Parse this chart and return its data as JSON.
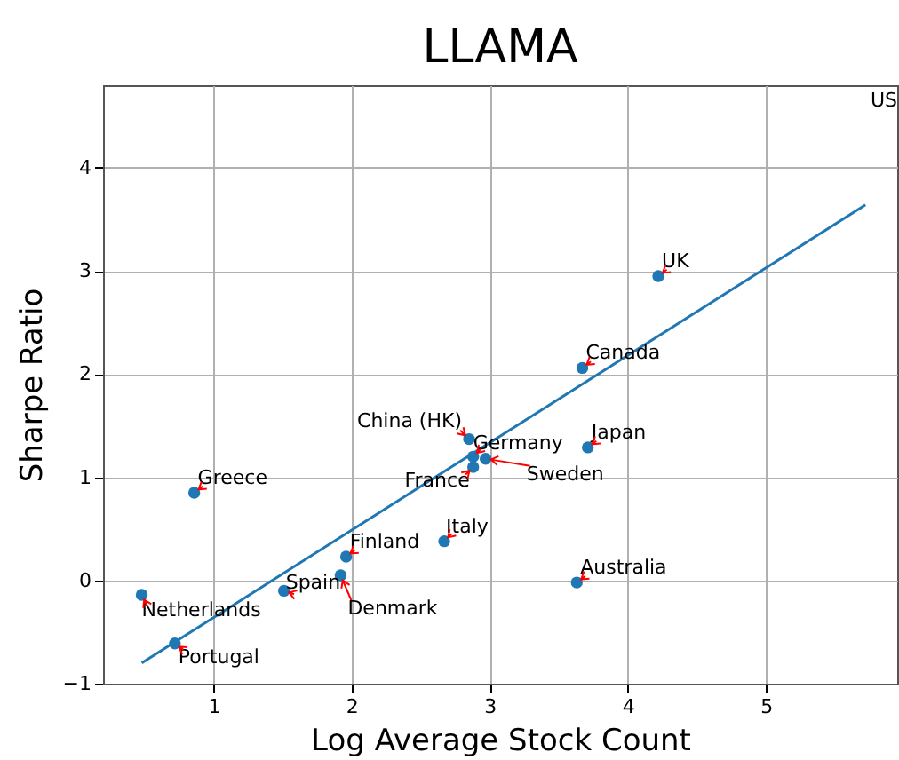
{
  "chart_data": {
    "type": "scatter",
    "title": "LLAMA",
    "xlabel": "Log Average Stock Count",
    "ylabel": "Sharpe Ratio",
    "x": [
      4.22,
      3.67,
      2.85,
      2.88,
      2.88,
      2.97,
      3.71,
      0.86,
      2.67,
      1.96,
      1.92,
      1.51,
      0.48,
      0.72,
      3.63
    ],
    "series": [
      {
        "color": "#1f77b4",
        "values": [
          2.95,
          2.06,
          1.37,
          1.2,
          1.1,
          1.18,
          1.29,
          0.85,
          0.38,
          0.23,
          0.05,
          -0.1,
          -0.14,
          -0.61,
          -0.02
        ]
      },
      {
        "type": "line",
        "color": "#1f77b4",
        "marker": "none",
        "x": [
          0.48,
          5.72
        ],
        "values": [
          -0.8,
          3.64
        ]
      }
    ],
    "annotations": [
      {
        "text": "UK",
        "x": 4.22,
        "y": 2.95
      },
      {
        "text": "Canada",
        "x": 3.67,
        "y": 2.06
      },
      {
        "text": "China (HK)",
        "x": 2.85,
        "y": 1.37
      },
      {
        "text": "Germany",
        "x": 2.88,
        "y": 1.2
      },
      {
        "text": "France",
        "x": 2.88,
        "y": 1.1
      },
      {
        "text": "Sweden",
        "x": 2.97,
        "y": 1.18
      },
      {
        "text": "Japan",
        "x": 3.71,
        "y": 1.29
      },
      {
        "text": "Greece",
        "x": 0.86,
        "y": 0.85
      },
      {
        "text": "Italy",
        "x": 2.67,
        "y": 0.38
      },
      {
        "text": "Finland",
        "x": 1.96,
        "y": 0.23
      },
      {
        "text": "Denmark",
        "x": 1.92,
        "y": 0.05
      },
      {
        "text": "Spain",
        "x": 1.51,
        "y": -0.1
      },
      {
        "text": "Netherlands",
        "x": 0.48,
        "y": -0.14
      },
      {
        "text": "Portugal",
        "x": 0.72,
        "y": -0.61
      },
      {
        "text": "Australia",
        "x": 3.63,
        "y": -0.02
      },
      "US"
    ],
    "xlim": [
      0.2,
      5.95
    ],
    "ylim": [
      -1,
      4.8
    ],
    "xticks": [
      1,
      2,
      3,
      4,
      5
    ],
    "yticks": [
      -1,
      0,
      1,
      2,
      3,
      4
    ],
    "grid": true,
    "marker": "circle"
  }
}
